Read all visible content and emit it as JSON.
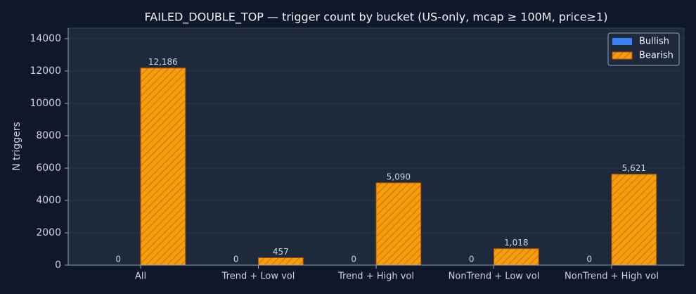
{
  "chart_data": {
    "type": "bar",
    "title": "FAILED_DOUBLE_TOP — trigger count by bucket (US-only, mcap ≥ 100M, price≥1)",
    "y_label": "N triggers",
    "categories": [
      "All",
      "Trend + Low vol",
      "Trend + High vol",
      "NonTrend + Low vol",
      "NonTrend + High vol"
    ],
    "series": [
      {
        "name": "Bullish",
        "color": "#3b82f6",
        "values": [
          0,
          0,
          0,
          0,
          0
        ]
      },
      {
        "name": "Bearish",
        "color": "#f59e0b",
        "values": [
          12186,
          457,
          5090,
          1018,
          5621
        ],
        "value_labels": [
          "12,186",
          "457",
          "5,090",
          "1,018",
          "5,621"
        ]
      }
    ],
    "ylim": [
      0,
      14650
    ],
    "yticks": [
      0,
      2000,
      4000,
      6000,
      8000,
      10000,
      12000,
      14000
    ],
    "grid": true,
    "legend": "upper right"
  }
}
